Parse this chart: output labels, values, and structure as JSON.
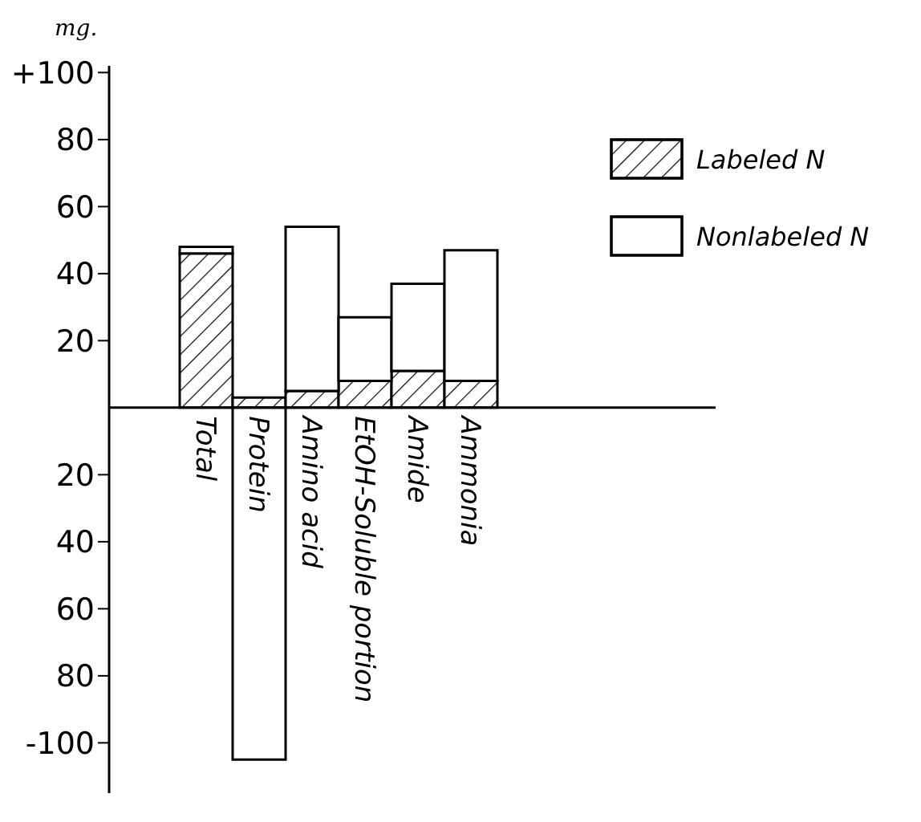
{
  "chart_data": {
    "type": "bar",
    "ylabel": "mg.",
    "categories": [
      "Total",
      "Protein",
      "Amino acid",
      "EtOH-Soluble portion",
      "Amide",
      "Ammonia"
    ],
    "series": [
      {
        "name": "Labeled N",
        "color": "#000000",
        "values": [
          46,
          3,
          5,
          8,
          11,
          8
        ]
      },
      {
        "name": "Nonlabeled N",
        "color": "#ffffff",
        "values": [
          2,
          -105,
          49,
          19,
          26,
          39
        ]
      }
    ],
    "stacked": true,
    "ylim": [
      -115,
      102
    ],
    "yticks": [
      {
        "value": 100,
        "label": "+100"
      },
      80,
      60,
      40,
      20,
      {
        "value": -20,
        "label": "20"
      },
      {
        "value": -40,
        "label": "40"
      },
      {
        "value": -60,
        "label": "60"
      },
      {
        "value": -80,
        "label": "80"
      },
      {
        "value": -100,
        "label": "-100"
      }
    ],
    "grid": false,
    "legend": "top right"
  }
}
